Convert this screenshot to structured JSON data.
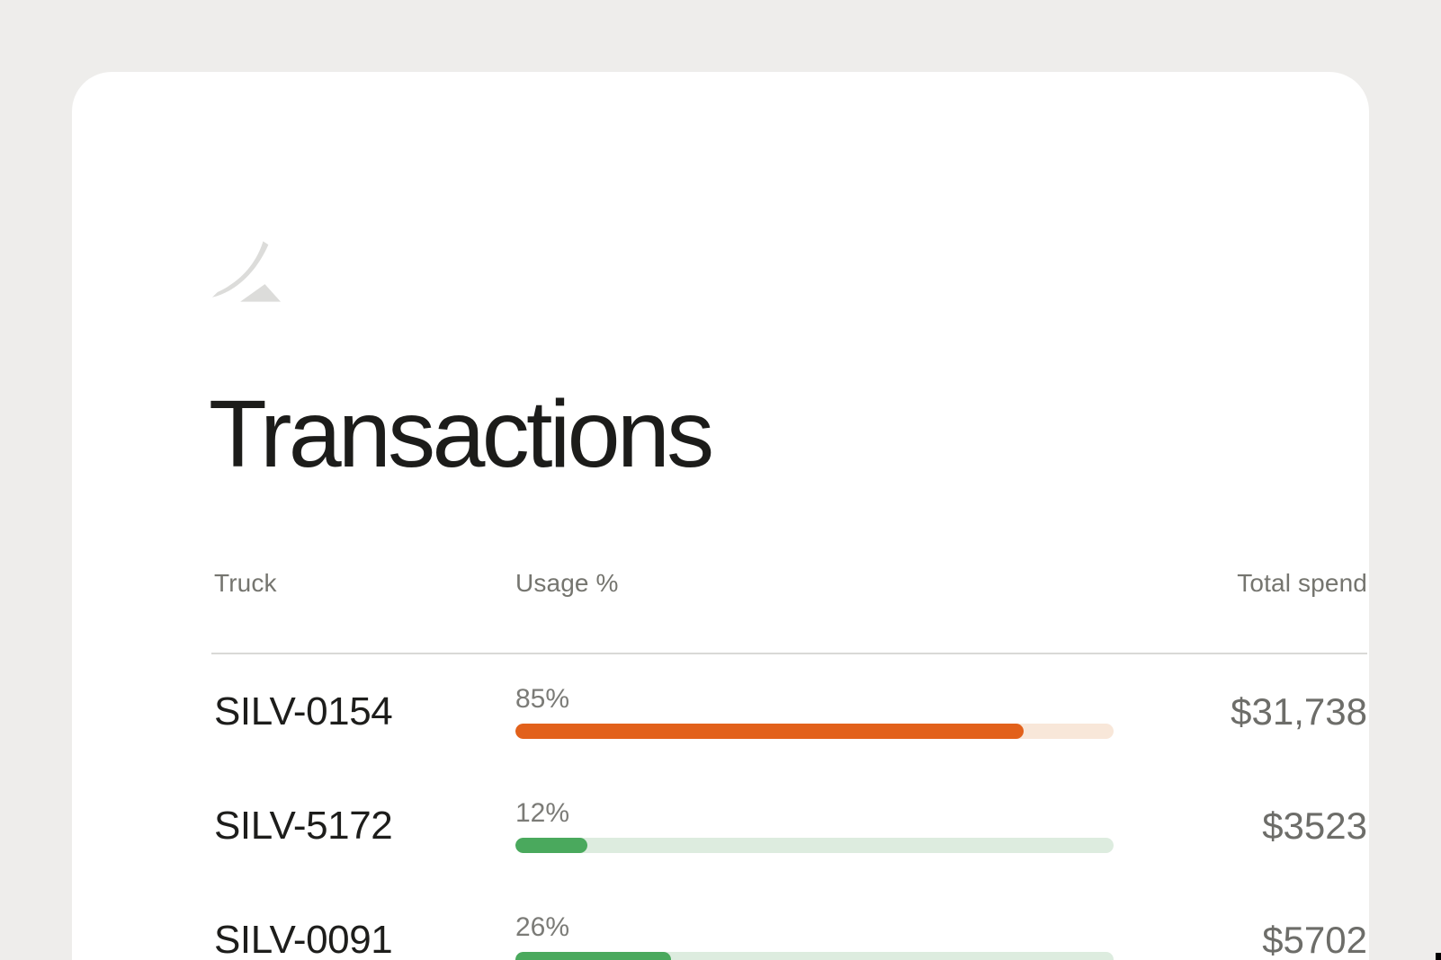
{
  "colors": {
    "page_bg": "#eeedeb",
    "card_bg": "#ffffff",
    "logo": "#dcdcda",
    "title": "#1c1c1a",
    "muted": "#75756f",
    "pct": "#7b7b77",
    "value": "#6d6d69",
    "divider": "#d9d9d6",
    "truck": "#1d1d1b"
  },
  "header": {
    "title": "Transactions"
  },
  "logo": {
    "name": "brand-swoosh-logo"
  },
  "table": {
    "columns": [
      {
        "label": "Truck"
      },
      {
        "label": "Usage %"
      },
      {
        "label": "Total spend"
      }
    ],
    "rows": [
      {
        "truck": "SILV-0154",
        "usage_pct": 85,
        "usage_label": "85%",
        "total_spend": "$31,738",
        "bar_color": "#e2611b",
        "track_color": "#f8e7d9"
      },
      {
        "truck": "SILV-5172",
        "usage_pct": 12,
        "usage_label": "12%",
        "total_spend": "$3523",
        "bar_color": "#4aa95d",
        "track_color": "#ddecdf"
      },
      {
        "truck": "SILV-0091",
        "usage_pct": 26,
        "usage_label": "26%",
        "total_spend": "$5702",
        "bar_color": "#4aa95d",
        "track_color": "#ddecdf"
      }
    ]
  }
}
